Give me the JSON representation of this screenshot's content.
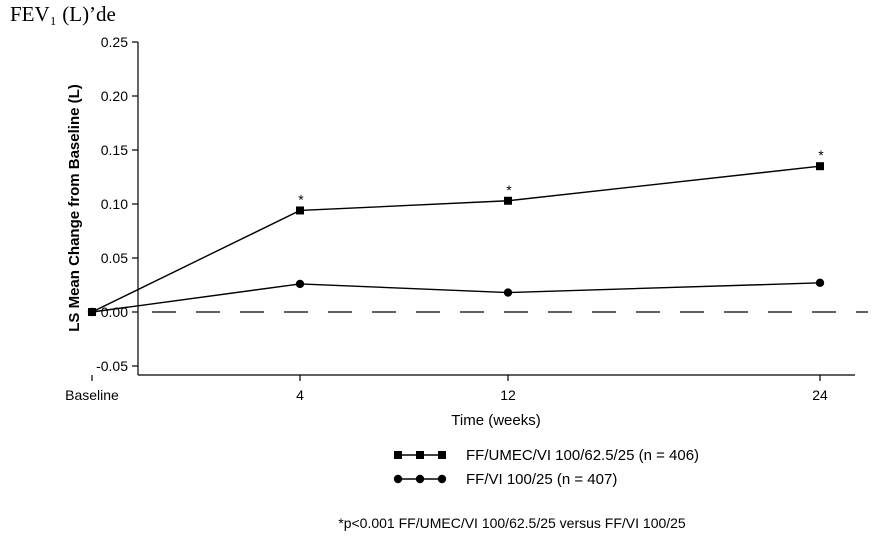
{
  "page": {
    "title": "FEV₁ (L)’de"
  },
  "chart_data": {
    "type": "line",
    "title": "",
    "xlabel": "Time (weeks)",
    "ylabel": "LS Mean Change from Baseline (L)",
    "categories": [
      "Baseline",
      "4",
      "12",
      "24"
    ],
    "x": [
      -4,
      4,
      12,
      24
    ],
    "ylim": [
      -0.05,
      0.25
    ],
    "yticks": [
      "0.25",
      "0.20",
      "0.15",
      "0.10",
      "0.05",
      "0.00",
      "-0.05"
    ],
    "reference_line": {
      "y": 0.0,
      "style": "dashed"
    },
    "grid": false,
    "legend_position": "bottom",
    "series": [
      {
        "name": "FF/UMEC/VI 100/62.5/25 (n = 406)",
        "marker": "square",
        "color": "#000000",
        "values": [
          0.0,
          0.094,
          0.103,
          0.135
        ],
        "annotations": [
          "",
          "*",
          "*",
          "*"
        ]
      },
      {
        "name": "FF/VI 100/25 (n = 407)",
        "marker": "circle",
        "color": "#000000",
        "values": [
          0.0,
          0.026,
          0.018,
          0.027
        ],
        "annotations": [
          "",
          "",
          "",
          ""
        ]
      }
    ],
    "footnote": "*p<0.001 FF/UMEC/VI 100/62.5/25 versus FF/VI 100/25"
  }
}
